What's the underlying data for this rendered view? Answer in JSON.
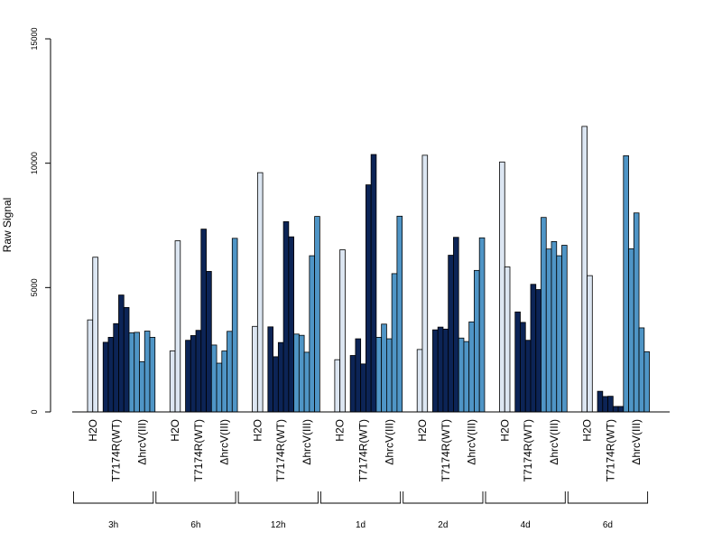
{
  "chart_data": {
    "type": "bar",
    "ylabel": "Raw Signal",
    "ylim": [
      0,
      15000
    ],
    "y_ticks": [
      "0",
      "5000",
      "10000",
      "15000"
    ],
    "grid": false,
    "legend": "none",
    "group_labels": [
      "H2O",
      "T7174R(WT)",
      "ΔhrcV(III)"
    ],
    "group_colors": [
      "#dce6f2",
      "#0c2456",
      "#4f95c6"
    ],
    "timepoints": [
      {
        "label": "3h",
        "values": [
          [
            3700,
            6220
          ],
          [
            2800,
            3000,
            3550,
            4700,
            4200
          ],
          [
            3180,
            3200,
            2020,
            3250,
            3000
          ]
        ]
      },
      {
        "label": "6h",
        "values": [
          [
            2450,
            6880
          ],
          [
            2880,
            3070,
            3280,
            7350,
            5650
          ],
          [
            2690,
            1960,
            2450,
            3240,
            6980
          ]
        ]
      },
      {
        "label": "12h",
        "values": [
          [
            3440,
            9620
          ],
          [
            3420,
            2220,
            2790,
            7650,
            7040
          ],
          [
            3130,
            3080,
            2400,
            6280,
            7860
          ]
        ]
      },
      {
        "label": "1d",
        "values": [
          [
            2100,
            6520
          ],
          [
            2270,
            2940,
            1930,
            9130,
            10350
          ],
          [
            3000,
            3530,
            2940,
            5560,
            7870
          ]
        ]
      },
      {
        "label": "2d",
        "values": [
          [
            2510,
            10320
          ],
          [
            3300,
            3410,
            3330,
            6300,
            7020
          ],
          [
            2970,
            2830,
            3620,
            5690,
            7000
          ]
        ]
      },
      {
        "label": "4d",
        "values": [
          [
            10050,
            5830
          ],
          [
            4020,
            3600,
            2880,
            5130,
            4920
          ],
          [
            7820,
            6550,
            6850,
            6280,
            6700
          ]
        ]
      },
      {
        "label": "6d",
        "values": [
          [
            11480,
            5480
          ],
          [
            830,
            620,
            630,
            220,
            220
          ],
          [
            10300,
            6560,
            8000,
            3380,
            2420
          ]
        ]
      }
    ]
  }
}
